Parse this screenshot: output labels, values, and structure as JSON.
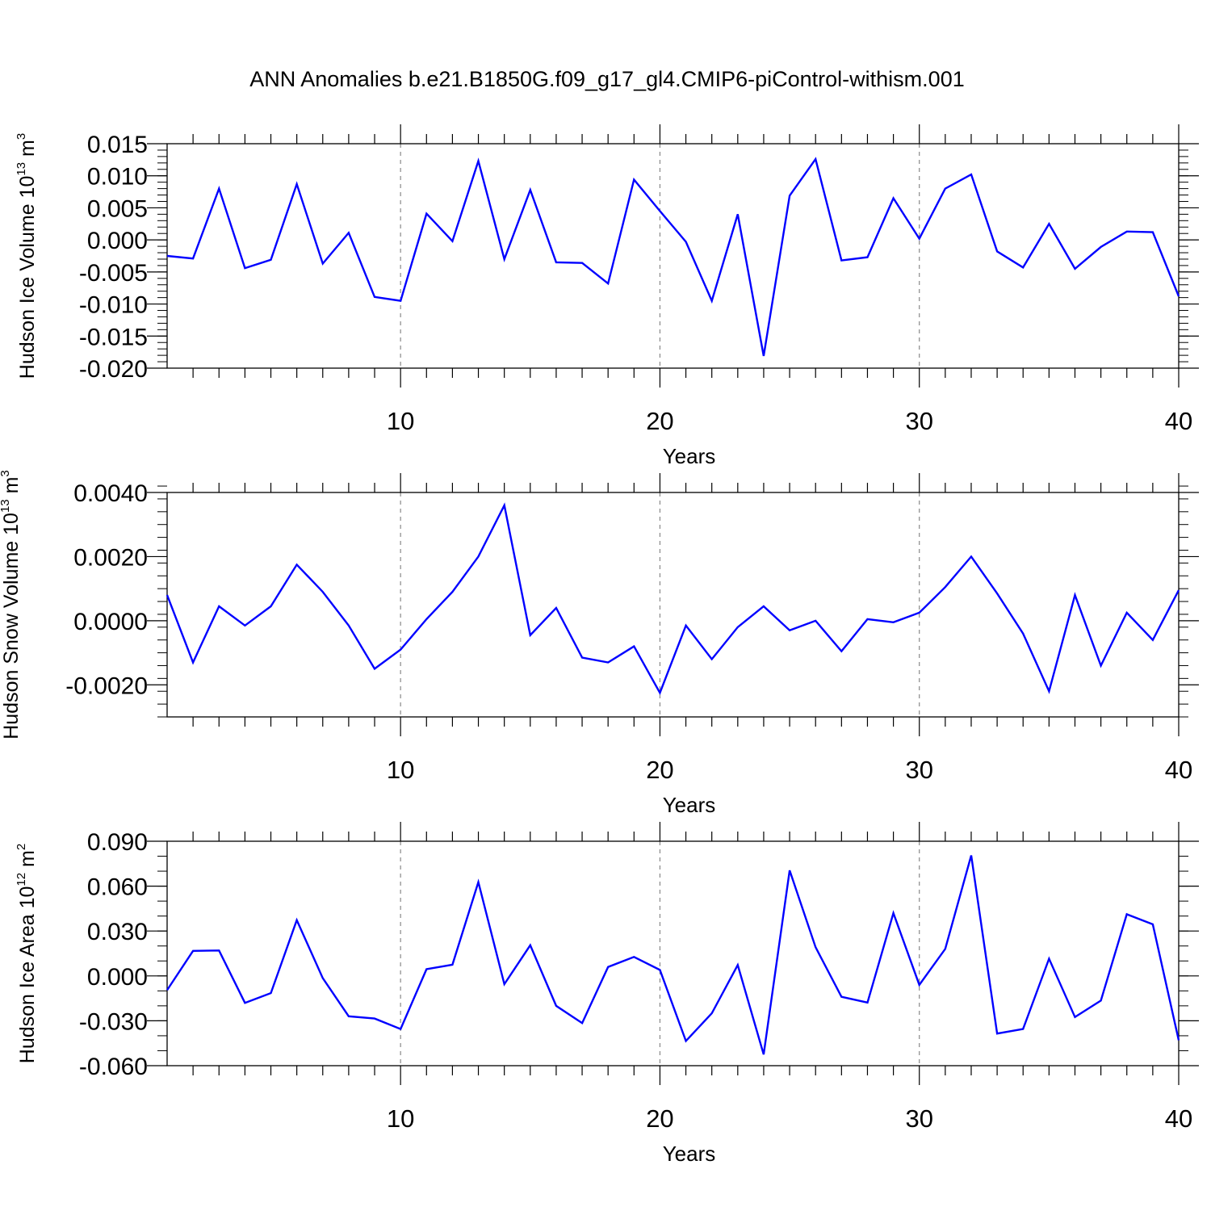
{
  "title": "ANN Anomalies b.e21.B1850G.f09_g17_gl4.CMIP6-piControl-withism.001",
  "colors": {
    "line": "#0000ff",
    "frame": "#000000",
    "grid": "#888888"
  },
  "chart_data": [
    {
      "type": "line",
      "xlabel": "Years",
      "ylabel": {
        "text": "Hudson Ice Volume 10",
        "exp": "13",
        "unit": " m",
        "unit_exp": "3"
      },
      "xlim": [
        1,
        40
      ],
      "ylim": [
        -0.02,
        0.015
      ],
      "xticks": [
        10,
        20,
        30,
        40
      ],
      "yticks": [
        "0.015",
        "0.010",
        "0.005",
        "0.000",
        "-0.005",
        "-0.010",
        "-0.015",
        "-0.020"
      ],
      "ytick_values": [
        0.015,
        0.01,
        0.005,
        0.0,
        -0.005,
        -0.01,
        -0.015,
        -0.02
      ],
      "y_minor_step": 0.001,
      "grid_x": "dashed at major x ticks",
      "series": [
        {
          "values": [
            -0.0025,
            -0.0029,
            0.008,
            -0.0044,
            -0.0031,
            0.0087,
            -0.0037,
            0.0011,
            -0.0089,
            -0.0095,
            0.0041,
            -0.0002,
            0.0123,
            -0.003,
            0.0078,
            -0.0035,
            -0.0036,
            -0.0068,
            0.0094,
            0.0045,
            -0.0003,
            -0.0095,
            0.004,
            -0.0181,
            0.0069,
            0.0126,
            -0.0032,
            -0.0027,
            0.0065,
            0.0002,
            0.008,
            0.0102,
            -0.0018,
            -0.0043,
            0.0025,
            -0.0045,
            -0.0011,
            0.0013,
            0.0012,
            -0.0088
          ]
        }
      ]
    },
    {
      "type": "line",
      "xlabel": "Years",
      "ylabel": {
        "text": "Hudson Snow Volume 10",
        "exp": "13",
        "unit": " m",
        "unit_exp": "3"
      },
      "xlim": [
        1,
        40
      ],
      "ylim": [
        -0.003,
        0.004
      ],
      "xticks": [
        10,
        20,
        30,
        40
      ],
      "yticks": [
        "0.0040",
        "0.0020",
        "0.0000",
        "-0.0020"
      ],
      "ytick_values": [
        0.004,
        0.002,
        0.0,
        -0.002
      ],
      "y_minor_step": 0.0004,
      "grid_x": "dashed at major x ticks",
      "series": [
        {
          "values": [
            0.0008,
            -0.0013,
            0.00045,
            -0.00015,
            0.00045,
            0.00175,
            0.0009,
            -0.00015,
            -0.0015,
            -0.0009,
            5e-05,
            0.0009,
            0.002,
            0.0036,
            -0.00045,
            0.0004,
            -0.00115,
            -0.0013,
            -0.0008,
            -0.00225,
            -0.00015,
            -0.0012,
            -0.0002,
            0.00045,
            -0.0003,
            0.0,
            -0.00095,
            5e-05,
            -5e-05,
            0.00025,
            0.00105,
            0.002,
            0.00085,
            -0.0004,
            -0.0022,
            0.0008,
            -0.0014,
            0.00025,
            -0.0006,
            0.00095
          ]
        }
      ]
    },
    {
      "type": "line",
      "xlabel": "Years",
      "ylabel": {
        "text": "Hudson Ice Area 10",
        "exp": "12",
        "unit": " m",
        "unit_exp": "2"
      },
      "xlim": [
        1,
        40
      ],
      "ylim": [
        -0.06,
        0.09
      ],
      "xticks": [
        10,
        20,
        30,
        40
      ],
      "yticks": [
        "0.090",
        "0.060",
        "0.030",
        "0.000",
        "-0.030",
        "-0.060"
      ],
      "ytick_values": [
        0.09,
        0.06,
        0.03,
        0.0,
        -0.03,
        -0.06
      ],
      "y_minor_step": 0.01,
      "grid_x": "dashed at major x ticks",
      "series": [
        {
          "values": [
            -0.0095,
            0.0167,
            0.017,
            -0.018,
            -0.0115,
            0.0373,
            -0.0015,
            -0.027,
            -0.0285,
            -0.0355,
            0.0045,
            0.0075,
            0.0627,
            -0.0055,
            0.0205,
            -0.02,
            -0.0315,
            0.006,
            0.0127,
            0.004,
            -0.0435,
            -0.025,
            0.0073,
            -0.0525,
            0.0705,
            0.0192,
            -0.014,
            -0.0178,
            0.042,
            -0.006,
            0.018,
            0.0805,
            -0.0385,
            -0.0355,
            0.0115,
            -0.0275,
            -0.0165,
            0.0412,
            0.0345,
            -0.043
          ]
        }
      ]
    }
  ]
}
